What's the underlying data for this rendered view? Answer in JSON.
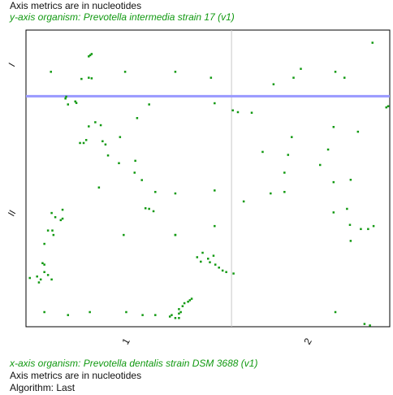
{
  "header": {
    "metrics_note": "Axis metrics are in nucleotides",
    "y_organism": "y-axis organism: Prevotella intermedia strain 17 (v1)"
  },
  "footer": {
    "x_organism": "x-axis organism: Prevotella dentalis strain DSM 3688 (v1)",
    "metrics_note": "Axis metrics are in nucleotides",
    "algorithm": "Algorithm: Last"
  },
  "colors": {
    "dots": "#119911",
    "sequence_boundary": "#c8c8c8",
    "highlight": "#9999ff",
    "frame": "#000000"
  },
  "chart_data": {
    "type": "scatter",
    "xlabel": "",
    "ylabel": "",
    "xlim": [
      0,
      1
    ],
    "ylim": [
      0,
      1
    ],
    "x_sequence_labels": [
      "1",
      "2"
    ],
    "y_sequence_labels": [
      "I",
      "II"
    ],
    "x_sequence_boundary": 0.565,
    "y_sequence_boundary": 0.777,
    "highlight_y": 0.777,
    "points": [
      [
        0.068,
        0.86
      ],
      [
        0.172,
        0.912
      ],
      [
        0.176,
        0.916
      ],
      [
        0.152,
        0.836
      ],
      [
        0.172,
        0.84
      ],
      [
        0.272,
        0.86
      ],
      [
        0.41,
        0.86
      ],
      [
        0.508,
        0.84
      ],
      [
        0.68,
        0.818
      ],
      [
        0.755,
        0.87
      ],
      [
        0.735,
        0.84
      ],
      [
        0.85,
        0.86
      ],
      [
        0.875,
        0.84
      ],
      [
        0.952,
        0.958
      ],
      [
        0.11,
        0.776
      ],
      [
        0.108,
        0.77
      ],
      [
        0.115,
        0.75
      ],
      [
        0.138,
        0.755
      ],
      [
        0.172,
        0.676
      ],
      [
        0.19,
        0.69
      ],
      [
        0.205,
        0.68
      ],
      [
        0.148,
        0.62
      ],
      [
        0.158,
        0.62
      ],
      [
        0.21,
        0.626
      ],
      [
        0.218,
        0.615
      ],
      [
        0.225,
        0.578
      ],
      [
        0.258,
        0.64
      ],
      [
        0.305,
        0.704
      ],
      [
        0.338,
        0.75
      ],
      [
        0.518,
        0.754
      ],
      [
        0.568,
        0.73
      ],
      [
        0.582,
        0.724
      ],
      [
        0.255,
        0.552
      ],
      [
        0.298,
        0.52
      ],
      [
        0.2,
        0.47
      ],
      [
        0.318,
        0.495
      ],
      [
        0.355,
        0.455
      ],
      [
        0.41,
        0.45
      ],
      [
        0.328,
        0.4
      ],
      [
        0.338,
        0.398
      ],
      [
        0.35,
        0.39
      ],
      [
        0.518,
        0.46
      ],
      [
        0.518,
        0.34
      ],
      [
        0.268,
        0.31
      ],
      [
        0.41,
        0.31
      ],
      [
        0.808,
        0.546
      ],
      [
        0.83,
        0.598
      ],
      [
        0.845,
        0.674
      ],
      [
        0.912,
        0.658
      ],
      [
        0.73,
        0.64
      ],
      [
        0.72,
        0.58
      ],
      [
        0.71,
        0.52
      ],
      [
        0.65,
        0.59
      ],
      [
        0.845,
        0.488
      ],
      [
        0.892,
        0.496
      ],
      [
        0.882,
        0.398
      ],
      [
        0.71,
        0.455
      ],
      [
        0.672,
        0.45
      ],
      [
        0.598,
        0.423
      ],
      [
        0.845,
        0.386
      ],
      [
        0.89,
        0.344
      ],
      [
        0.892,
        0.29
      ],
      [
        0.92,
        0.33
      ],
      [
        0.94,
        0.33
      ],
      [
        0.955,
        0.34
      ],
      [
        0.99,
        0.74
      ],
      [
        0.995,
        0.744
      ],
      [
        0.07,
        0.384
      ],
      [
        0.08,
        0.37
      ],
      [
        0.095,
        0.36
      ],
      [
        0.1,
        0.365
      ],
      [
        0.06,
        0.325
      ],
      [
        0.05,
        0.28
      ],
      [
        0.075,
        0.31
      ],
      [
        0.072,
        0.325
      ],
      [
        0.045,
        0.215
      ],
      [
        0.05,
        0.21
      ],
      [
        0.03,
        0.17
      ],
      [
        0.04,
        0.16
      ],
      [
        0.035,
        0.15
      ],
      [
        0.01,
        0.165
      ],
      [
        0.07,
        0.16
      ],
      [
        0.06,
        0.175
      ],
      [
        0.05,
        0.185
      ],
      [
        0.485,
        0.25
      ],
      [
        0.5,
        0.23
      ],
      [
        0.505,
        0.218
      ],
      [
        0.52,
        0.21
      ],
      [
        0.53,
        0.2
      ],
      [
        0.54,
        0.19
      ],
      [
        0.55,
        0.185
      ],
      [
        0.515,
        0.24
      ],
      [
        0.48,
        0.22
      ],
      [
        0.47,
        0.235
      ],
      [
        0.57,
        0.18
      ],
      [
        0.05,
        0.05
      ],
      [
        0.115,
        0.04
      ],
      [
        0.175,
        0.05
      ],
      [
        0.275,
        0.05
      ],
      [
        0.32,
        0.04
      ],
      [
        0.355,
        0.04
      ],
      [
        0.4,
        0.04
      ],
      [
        0.42,
        0.045
      ],
      [
        0.42,
        0.06
      ],
      [
        0.43,
        0.07
      ],
      [
        0.435,
        0.08
      ],
      [
        0.445,
        0.085
      ],
      [
        0.45,
        0.09
      ],
      [
        0.455,
        0.095
      ],
      [
        0.395,
        0.035
      ],
      [
        0.41,
        0.03
      ],
      [
        0.42,
        0.03
      ],
      [
        0.425,
        0.05
      ],
      [
        0.85,
        0.05
      ],
      [
        0.93,
        0.01
      ],
      [
        0.945,
        0.005
      ],
      [
        0.1,
        0.395
      ],
      [
        0.135,
        0.76
      ],
      [
        0.18,
        0.92
      ],
      [
        0.62,
        0.722
      ],
      [
        0.18,
        0.838
      ],
      [
        0.165,
        0.63
      ],
      [
        0.3,
        0.56
      ],
      [
        0.41,
        0.31
      ]
    ]
  }
}
